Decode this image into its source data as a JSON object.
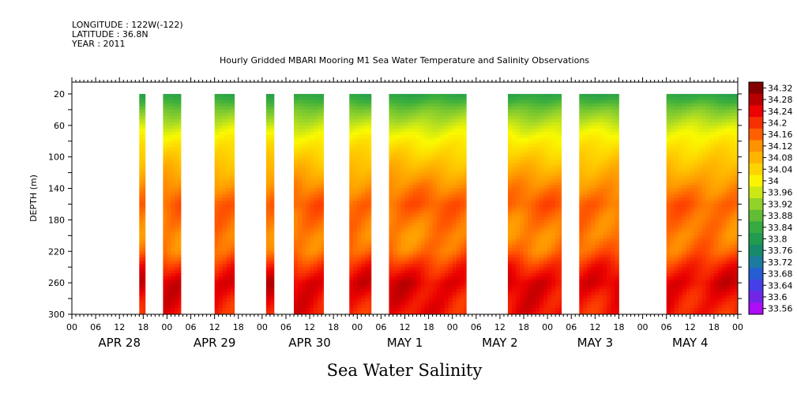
{
  "header": {
    "longitude": "LONGITUDE : 122W(-122)",
    "latitude": "LATITUDE : 36.8N",
    "year": "YEAR : 2011"
  },
  "chart_data": {
    "type": "heatmap",
    "title": "Hourly Gridded MBARI Mooring M1 Sea Water Temperature and Salinity Observations",
    "xlabel": "Sea Water Salinity",
    "ylabel": "DEPTH (m)",
    "ylim": [
      300,
      5
    ],
    "yticks": [
      20,
      60,
      100,
      140,
      180,
      220,
      260,
      300
    ],
    "x_hour_labels": [
      "00",
      "06",
      "12",
      "18",
      "00",
      "06",
      "12",
      "18",
      "00",
      "06",
      "12",
      "18",
      "00",
      "06",
      "12",
      "18",
      "00",
      "06",
      "12",
      "18",
      "00",
      "06",
      "12",
      "18",
      "00",
      "06",
      "12",
      "18",
      "00"
    ],
    "date_labels": [
      "APR 28",
      "APR 29",
      "APR 30",
      "MAY 1",
      "MAY 2",
      "MAY 3",
      "MAY 4"
    ],
    "x_unit": "hours since 2011-04-28 00:00",
    "xlim": [
      0,
      168
    ],
    "colorbar": {
      "levels": [
        "34.32",
        "34.28",
        "34.24",
        "34.2",
        "34.16",
        "34.12",
        "34.08",
        "34.04",
        "34",
        "33.96",
        "33.92",
        "33.88",
        "33.84",
        "33.8",
        "33.76",
        "33.72",
        "33.68",
        "33.64",
        "33.6",
        "33.56"
      ],
      "min": 33.56,
      "max": 34.34
    },
    "data_segments_hours": [
      [
        17,
        18.5
      ],
      [
        23,
        27.5
      ],
      [
        36,
        41
      ],
      [
        49,
        51
      ],
      [
        56,
        63.5
      ],
      [
        70,
        75.5
      ],
      [
        80,
        99.5
      ],
      [
        110,
        123.5
      ],
      [
        128,
        138
      ],
      [
        150,
        168
      ]
    ],
    "depths_m": [
      20,
      40,
      60,
      80,
      100,
      120,
      140,
      160,
      180,
      200,
      220,
      240,
      260,
      280,
      300
    ],
    "mean_profile_psu": [
      33.84,
      33.92,
      33.98,
      34.03,
      34.07,
      34.11,
      34.15,
      34.18,
      34.16,
      34.15,
      34.17,
      34.23,
      34.27,
      34.25,
      34.24
    ],
    "grid": false,
    "legend": "colorbar-right"
  }
}
